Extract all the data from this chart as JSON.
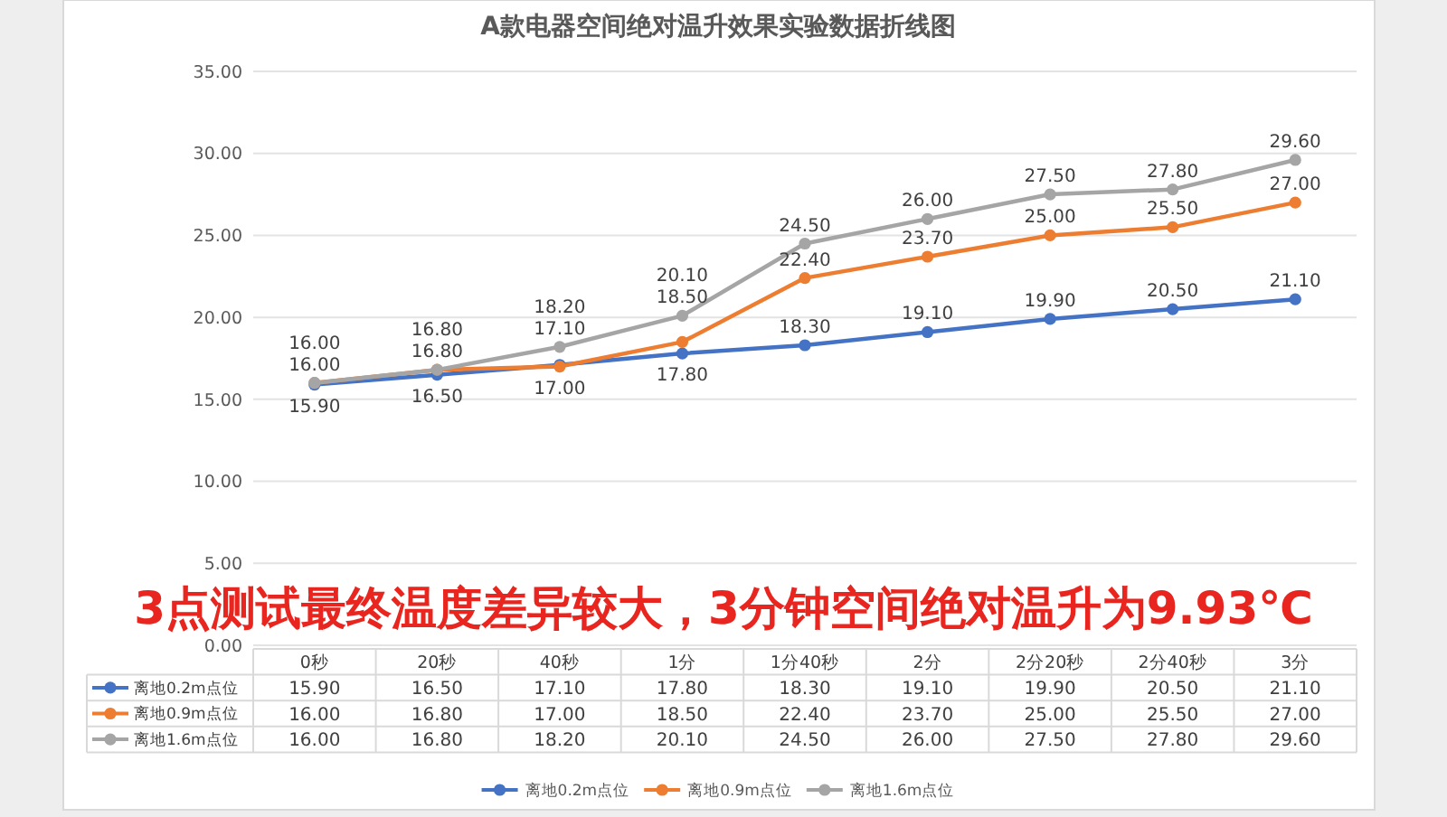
{
  "chart_data": {
    "type": "line",
    "title": "A款电器空间绝对温升效果实验数据折线图",
    "annotations": [
      "3点测试最终温度差异较大，3分钟空间绝对温升为9.93℃"
    ],
    "categories": [
      "0秒",
      "20秒",
      "40秒",
      "1分",
      "1分40秒",
      "2分",
      "2分20秒",
      "2分40秒",
      "3分"
    ],
    "series": [
      {
        "name": "离地0.2m点位",
        "color": "#4472c4",
        "values": [
          15.9,
          16.5,
          17.1,
          17.8,
          18.3,
          19.1,
          19.9,
          20.5,
          21.1
        ],
        "value_labels": [
          "15.90",
          "16.50",
          "17.10",
          "17.80",
          "18.30",
          "19.10",
          "19.90",
          "20.50",
          "21.10"
        ]
      },
      {
        "name": "离地0.9m点位",
        "color": "#ed7d31",
        "values": [
          16.0,
          16.8,
          17.0,
          18.5,
          22.4,
          23.7,
          25.0,
          25.5,
          27.0
        ],
        "value_labels": [
          "16.00",
          "16.80",
          "17.00",
          "18.50",
          "22.40",
          "23.70",
          "25.00",
          "25.50",
          "27.00"
        ]
      },
      {
        "name": "离地1.6m点位",
        "color": "#a5a5a5",
        "values": [
          16.0,
          16.8,
          18.2,
          20.1,
          24.5,
          26.0,
          27.5,
          27.8,
          29.6
        ],
        "value_labels": [
          "16.00",
          "16.80",
          "18.20",
          "20.10",
          "24.50",
          "26.00",
          "27.50",
          "27.80",
          "29.60"
        ]
      }
    ],
    "ylim": [
      0,
      35
    ],
    "yticks": [
      {
        "value": 0,
        "label": "0.00"
      },
      {
        "value": 5,
        "label": "5.00"
      },
      {
        "value": 10,
        "label": "10.00"
      },
      {
        "value": 15,
        "label": "15.00"
      },
      {
        "value": 20,
        "label": "20.00"
      },
      {
        "value": 25,
        "label": "25.00"
      },
      {
        "value": 30,
        "label": "30.00"
      },
      {
        "value": 35,
        "label": "35.00"
      }
    ],
    "grid": "y",
    "legend": "bottom",
    "marker": "circle",
    "line_style": "solid"
  }
}
